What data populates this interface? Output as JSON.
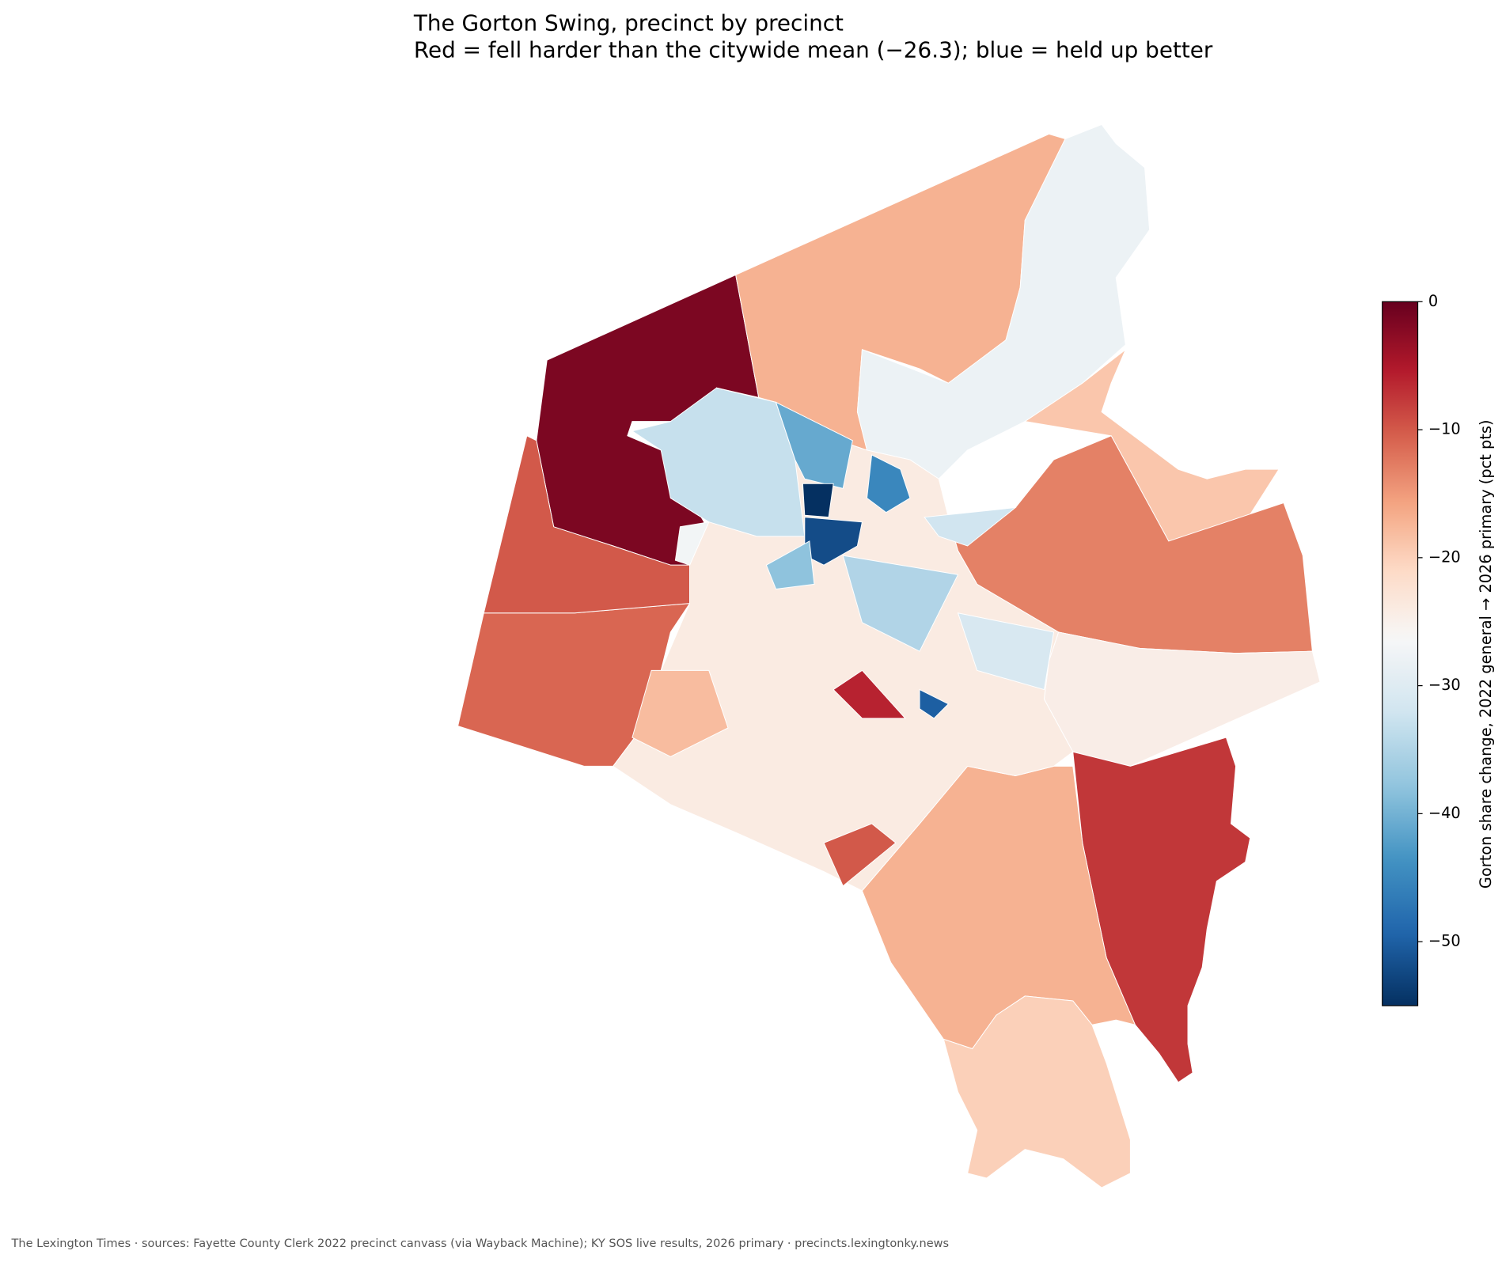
{
  "chart_data": {
    "type": "choropleth",
    "title": "The Gorton Swing, precinct by precinct",
    "subtitle": "Red = fell harder than the citywide mean (−26.3); blue = held up better",
    "footer": "The Lexington Times · sources: Fayette County Clerk 2022 precinct canvass (via Wayback Machine); KY SOS live results, 2026 primary · precincts.lexingtonky.news",
    "values": [
      -1.5,
      -17,
      -28,
      -19,
      -13,
      -24.5,
      -7.5,
      -17,
      -20,
      -11,
      -10,
      -24,
      -33,
      -41,
      -52,
      -55,
      -45,
      -38,
      -32,
      -6,
      -18,
      -50,
      -31,
      -10,
      -27,
      -35
    ],
    "color_center": -26.3,
    "color_stops": [
      "#053061",
      "#2166ac",
      "#4393c3",
      "#92c5de",
      "#d1e5f0",
      "#f7f7f7",
      "#fddbc7",
      "#f4a582",
      "#d6604d",
      "#b2182b",
      "#67001f"
    ],
    "colorbar": {
      "label": "Gorton share change, 2022 general → 2026 primary (pct pts)",
      "lim": [
        -55,
        0
      ],
      "ticks": [
        0,
        {
          "value": -10,
          "label": "−10"
        },
        {
          "value": -20,
          "label": "−20"
        },
        {
          "value": -30,
          "label": "−30"
        },
        {
          "value": -40,
          "label": "−40"
        },
        {
          "value": -50,
          "label": "−50"
        }
      ]
    }
  }
}
